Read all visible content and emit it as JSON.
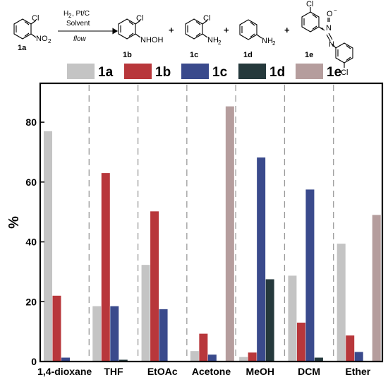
{
  "scheme": {
    "conditions": {
      "line1": "H",
      "line1_sub": "2",
      "line1_rest": ", Pt/C",
      "line2": "Solvent",
      "line3": "flow"
    },
    "compounds": [
      {
        "label": "1a",
        "substituents": [
          "Cl",
          "NO",
          "2"
        ]
      },
      {
        "label": "1b",
        "substituents": [
          "Cl",
          "NHOH"
        ]
      },
      {
        "label": "1c",
        "substituents": [
          "Cl",
          "NH",
          "2"
        ]
      },
      {
        "label": "1d",
        "substituents": [
          "NH",
          "2"
        ]
      },
      {
        "label": "1e",
        "substituents": [
          "Cl",
          "O",
          "N",
          "N",
          "Cl",
          "+",
          "−"
        ]
      }
    ],
    "plus": "+"
  },
  "chart_data": {
    "type": "bar",
    "categories": [
      "1,4-dioxane",
      "THF",
      "EtOAc",
      "Acetone",
      "MeOH",
      "DCM",
      "Ether"
    ],
    "series": [
      {
        "name": "1a",
        "color": "#c4c4c4",
        "values": [
          77,
          18.5,
          32.3,
          3.5,
          1.5,
          28.7,
          39.4
        ]
      },
      {
        "name": "1b",
        "color": "#b8373b",
        "values": [
          22,
          63,
          50.2,
          9.3,
          3,
          13,
          8.7
        ]
      },
      {
        "name": "1c",
        "color": "#3a4a8c",
        "values": [
          1.3,
          18.5,
          17.5,
          2.3,
          68.2,
          57.5,
          3.2
        ]
      },
      {
        "name": "1d",
        "color": "#25393c",
        "values": [
          0,
          0.6,
          0.2,
          0,
          27.5,
          1.3,
          0
        ]
      },
      {
        "name": "1e",
        "color": "#b59d9d",
        "values": [
          0,
          0,
          0,
          85.3,
          0,
          0,
          49
        ]
      }
    ],
    "ylabel": "%",
    "xlabel": "",
    "ylim": [
      0,
      93
    ],
    "yticks": [
      0,
      20,
      40,
      60,
      80
    ],
    "legend": "top",
    "grid": false,
    "separators": "dashed vertical between categories"
  }
}
